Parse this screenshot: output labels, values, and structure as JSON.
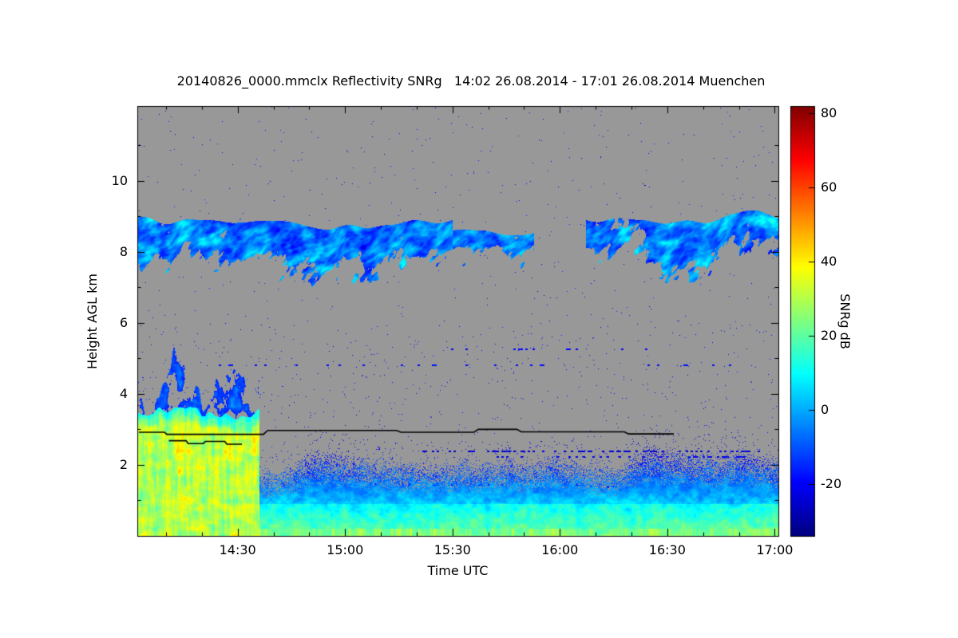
{
  "chart_data": {
    "type": "heatmap",
    "title": "20140826_0000.mmclx Reflectivity SNRg   14:02 26.08.2014 - 17:01 26.08.2014 Muenchen",
    "xlabel": "Time UTC",
    "ylabel": "Height AGL km",
    "grid": false,
    "colormap": "jet",
    "no_signal_color": "#989898",
    "x_range_hours": [
      14.033,
      17.017
    ],
    "x_minor_tick_minutes": 10,
    "x_ticks": [
      {
        "hour": 14.5,
        "label": "14:30"
      },
      {
        "hour": 15.0,
        "label": "15:00"
      },
      {
        "hour": 15.5,
        "label": "15:30"
      },
      {
        "hour": 16.0,
        "label": "16:00"
      },
      {
        "hour": 16.5,
        "label": "16:30"
      },
      {
        "hour": 17.0,
        "label": "17:00"
      }
    ],
    "y_range_km": [
      0,
      12.1
    ],
    "y_ticks": [
      {
        "km": 10,
        "label": "10"
      },
      {
        "km": 8,
        "label": "8"
      },
      {
        "km": 6,
        "label": "6"
      },
      {
        "km": 4,
        "label": "4"
      },
      {
        "km": 2,
        "label": "2"
      }
    ],
    "colorbar": {
      "label": "SNRg dB",
      "vmin": -34,
      "vmax": 82,
      "ticks": [
        {
          "value": 80,
          "label": "80"
        },
        {
          "value": 60,
          "label": "60"
        },
        {
          "value": 40,
          "label": "40"
        },
        {
          "value": 20,
          "label": "20"
        },
        {
          "value": 0,
          "label": "0"
        },
        {
          "value": -20,
          "label": "-20"
        }
      ]
    },
    "features": {
      "cirrus": {
        "t0": 14.033,
        "t1": 17.017,
        "top_km": 9.05,
        "top_var_km": 0.5,
        "descent_km_per_h": 0.08,
        "thickness_min_km": 0.7,
        "thickness_max_km": 1.8,
        "snr_min": -24,
        "snr_max": 17,
        "gap": [
          15.88,
          16.12
        ],
        "sparse": [
          16.12,
          16.4
        ],
        "thin": [
          15.5,
          15.9
        ]
      },
      "precip": {
        "t0": 14.033,
        "t1": 14.6,
        "core_top_km": 3.45,
        "core_top_var_km": 0.5,
        "snr_min": 8,
        "snr_max": 55,
        "plume_extra_km": 2.3,
        "plume_snr_min": -16,
        "plume_snr_max": 2
      },
      "boundary_layer": {
        "t0": 14.55,
        "t1": 17.017,
        "top_km": 2.25,
        "top_var_km": 0.55,
        "snr_at_surface": 17,
        "snr_lapse_per_km": -15,
        "snr_noise_amp": 9,
        "low_level_boost": 11,
        "snr_min": -26,
        "snr_max": 42
      },
      "surface": {
        "top_km": 0.2,
        "snr_mid": 22,
        "snr_amp": 16
      }
    },
    "speckle": {
      "density": 0.0018,
      "mid_density_mult": 2.5,
      "snr_min": -27,
      "snr_max": -13
    },
    "speckle_rows": [
      {
        "h": 4.8,
        "t0": 14.3,
        "t1": 17.0,
        "density": 0.1,
        "snr": -18
      },
      {
        "h": 5.25,
        "t0": 15.4,
        "t1": 16.5,
        "density": 0.08,
        "snr": -19
      },
      {
        "h": 2.38,
        "t0": 15.35,
        "t1": 16.95,
        "density": 0.45,
        "snr": -24
      },
      {
        "h": 2.22,
        "t0": 15.5,
        "t1": 16.9,
        "density": 0.25,
        "snr": -22
      },
      {
        "h": 1.45,
        "t0": 14.8,
        "t1": 16.2,
        "density": 0.22,
        "snr": -20
      },
      {
        "h": 1.38,
        "t0": 16.0,
        "t1": 17.0,
        "density": 0.2,
        "snr": -21
      }
    ],
    "melting_layer_lines": [
      {
        "points": [
          [
            14.04,
            2.92
          ],
          [
            14.16,
            2.92
          ],
          [
            14.17,
            2.86
          ],
          [
            14.62,
            2.86
          ],
          [
            14.64,
            2.97
          ],
          [
            15.24,
            2.97
          ],
          [
            15.26,
            2.92
          ],
          [
            15.6,
            2.92
          ],
          [
            15.62,
            3.0
          ],
          [
            15.8,
            3.0
          ],
          [
            15.82,
            2.93
          ],
          [
            16.3,
            2.93
          ],
          [
            16.32,
            2.87
          ],
          [
            16.53,
            2.87
          ]
        ]
      },
      {
        "points": [
          [
            14.18,
            2.68
          ],
          [
            14.26,
            2.68
          ],
          [
            14.27,
            2.6
          ],
          [
            14.34,
            2.6
          ],
          [
            14.35,
            2.66
          ],
          [
            14.44,
            2.66
          ],
          [
            14.45,
            2.58
          ],
          [
            14.52,
            2.58
          ]
        ]
      }
    ]
  }
}
